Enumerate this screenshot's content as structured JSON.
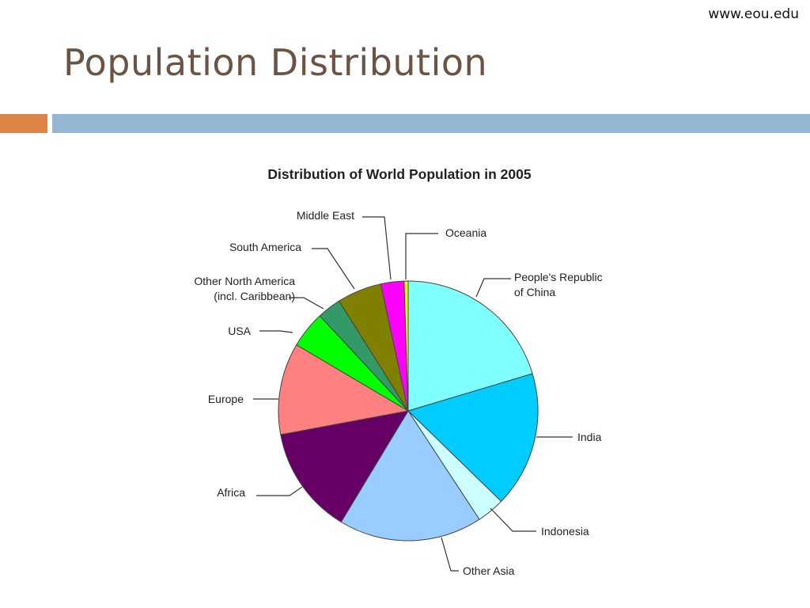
{
  "header": {
    "site_url": "www.eou.edu",
    "title": "Population Distribution"
  },
  "colors": {
    "title": "#6b5443",
    "accent_bar": "#dd8447",
    "main_bar": "#94b6d2"
  },
  "chart_data": {
    "type": "pie",
    "title": "Distribution of World Population in 2005",
    "unit": "percent",
    "slices": [
      {
        "label": "People's Republic of China",
        "lines": [
          "People's Republic",
          "of China"
        ],
        "value": 20.5,
        "color": "#80ffff"
      },
      {
        "label": "India",
        "lines": [
          "India"
        ],
        "value": 17.0,
        "color": "#00ccff"
      },
      {
        "label": "Indonesia",
        "lines": [
          "Indonesia"
        ],
        "value": 3.5,
        "color": "#ccffff"
      },
      {
        "label": "Other Asia",
        "lines": [
          "Other Asia"
        ],
        "value": 18.0,
        "color": "#99ccff"
      },
      {
        "label": "Africa",
        "lines": [
          "Africa"
        ],
        "value": 13.5,
        "color": "#660066"
      },
      {
        "label": "Europe",
        "lines": [
          "Europe"
        ],
        "value": 11.5,
        "color": "#ff8080"
      },
      {
        "label": "USA",
        "lines": [
          "USA"
        ],
        "value": 4.6,
        "color": "#00ff00"
      },
      {
        "label": "Other North America (incl. Caribbean)",
        "lines": [
          "Other North America",
          "(incl. Caribbean)"
        ],
        "value": 3.0,
        "color": "#339966"
      },
      {
        "label": "South America",
        "lines": [
          "South America"
        ],
        "value": 5.6,
        "color": "#808000"
      },
      {
        "label": "Middle East",
        "lines": [
          "Middle East"
        ],
        "value": 2.9,
        "color": "#ff00ff"
      },
      {
        "label": "Oceania",
        "lines": [
          "Oceania"
        ],
        "value": 0.5,
        "color": "#ffff00"
      }
    ]
  }
}
